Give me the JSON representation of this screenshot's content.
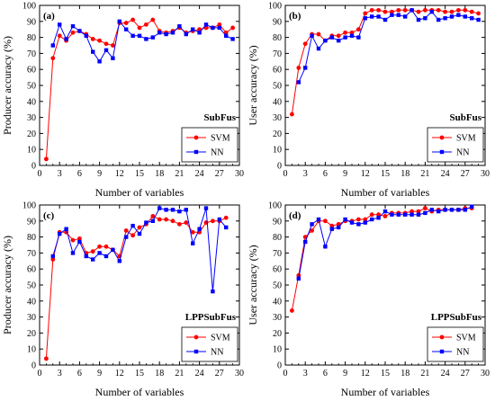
{
  "colors": {
    "svm": "#ff0000",
    "nn": "#0000ff",
    "frame": "#000000"
  },
  "chart_data": [
    {
      "type": "line",
      "panel_label": "(a)",
      "title": "SubFus",
      "xlabel": "Number of variables",
      "ylabel": "Producer accuracy (%)",
      "xlim": [
        0,
        30
      ],
      "ylim": [
        0,
        100
      ],
      "xticks": [
        0,
        3,
        6,
        9,
        12,
        15,
        18,
        21,
        24,
        27,
        30
      ],
      "yticks": [
        0,
        10,
        20,
        30,
        40,
        50,
        60,
        70,
        80,
        90,
        100
      ],
      "grid": false,
      "legend": "bottom-right",
      "x": [
        1,
        2,
        3,
        4,
        5,
        6,
        7,
        8,
        9,
        10,
        11,
        12,
        13,
        14,
        15,
        16,
        17,
        18,
        19,
        20,
        21,
        22,
        23,
        24,
        25,
        26,
        27,
        28,
        29
      ],
      "series": [
        {
          "name": "SVM",
          "values": [
            4,
            67,
            81,
            78,
            83,
            84,
            82,
            79,
            78,
            76,
            75,
            89,
            89,
            91,
            86,
            88,
            91,
            84,
            83,
            84,
            86,
            83,
            84,
            85,
            86,
            86,
            88,
            83,
            86
          ]
        },
        {
          "name": "NN",
          "values": [
            null,
            75,
            88,
            79,
            87,
            84,
            81,
            71,
            65,
            72,
            67,
            90,
            85,
            81,
            81,
            79,
            80,
            83,
            82,
            83,
            87,
            82,
            85,
            83,
            88,
            86,
            86,
            81,
            79
          ]
        }
      ]
    },
    {
      "type": "line",
      "panel_label": "(b)",
      "title": "SubFus",
      "xlabel": "Number of variables",
      "ylabel": "User accuracy (%)",
      "xlim": [
        0,
        30
      ],
      "ylim": [
        0,
        100
      ],
      "xticks": [
        0,
        3,
        6,
        9,
        12,
        15,
        18,
        21,
        24,
        27,
        30
      ],
      "yticks": [
        0,
        10,
        20,
        30,
        40,
        50,
        60,
        70,
        80,
        90,
        100
      ],
      "grid": false,
      "legend": "bottom-right",
      "x": [
        1,
        2,
        3,
        4,
        5,
        6,
        7,
        8,
        9,
        10,
        11,
        12,
        13,
        14,
        15,
        16,
        17,
        18,
        19,
        20,
        21,
        22,
        23,
        24,
        25,
        26,
        27,
        28,
        29
      ],
      "series": [
        {
          "name": "SVM",
          "values": [
            32,
            61,
            76,
            82,
            82,
            78,
            81,
            81,
            83,
            83,
            85,
            95,
            97,
            97,
            96,
            96,
            97,
            97,
            97,
            96,
            97,
            97,
            97,
            96,
            96,
            97,
            97,
            96,
            95
          ]
        },
        {
          "name": "NN",
          "values": [
            null,
            52,
            61,
            81,
            73,
            78,
            80,
            78,
            80,
            81,
            80,
            92,
            93,
            93,
            91,
            94,
            94,
            93,
            97,
            91,
            92,
            96,
            91,
            92,
            93,
            94,
            93,
            92,
            91
          ]
        }
      ]
    },
    {
      "type": "line",
      "panel_label": "(c)",
      "title": "LPPSubFus",
      "xlabel": "Number of variables",
      "ylabel": "Producer accuracy (%)",
      "xlim": [
        0,
        30
      ],
      "ylim": [
        0,
        100
      ],
      "xticks": [
        0,
        3,
        6,
        9,
        12,
        15,
        18,
        21,
        24,
        27,
        30
      ],
      "yticks": [
        0,
        10,
        20,
        30,
        40,
        50,
        60,
        70,
        80,
        90,
        100
      ],
      "grid": false,
      "legend": "bottom-right",
      "x": [
        1,
        2,
        3,
        4,
        5,
        6,
        7,
        8,
        9,
        10,
        11,
        12,
        13,
        14,
        15,
        16,
        17,
        18,
        19,
        20,
        21,
        22,
        23,
        24,
        25,
        26,
        27,
        28
      ],
      "series": [
        {
          "name": "SVM",
          "values": [
            4,
            66,
            83,
            83,
            78,
            79,
            70,
            71,
            74,
            74,
            72,
            68,
            84,
            81,
            86,
            88,
            93,
            91,
            91,
            90,
            88,
            89,
            83,
            83,
            89,
            90,
            90,
            92
          ]
        },
        {
          "name": "NN",
          "values": [
            null,
            68,
            82,
            85,
            70,
            77,
            68,
            66,
            70,
            68,
            72,
            65,
            80,
            87,
            82,
            89,
            90,
            98,
            97,
            97,
            96,
            97,
            76,
            85,
            98,
            46,
            91,
            86
          ]
        }
      ]
    },
    {
      "type": "line",
      "panel_label": "(d)",
      "title": "LPPSubFus",
      "xlabel": "Number of variables",
      "ylabel": "User accuracy (%)",
      "xlim": [
        0,
        30
      ],
      "ylim": [
        0,
        100
      ],
      "xticks": [
        0,
        3,
        6,
        9,
        12,
        15,
        18,
        21,
        24,
        27,
        30
      ],
      "yticks": [
        0,
        10,
        20,
        30,
        40,
        50,
        60,
        70,
        80,
        90,
        100
      ],
      "grid": false,
      "legend": "bottom-right",
      "x": [
        1,
        2,
        3,
        4,
        5,
        6,
        7,
        8,
        9,
        10,
        11,
        12,
        13,
        14,
        15,
        16,
        17,
        18,
        19,
        20,
        21,
        22,
        23,
        24,
        25,
        26,
        27,
        28
      ],
      "series": [
        {
          "name": "SVM",
          "values": [
            34,
            56,
            80,
            84,
            90,
            90,
            87,
            88,
            90,
            90,
            91,
            91,
            94,
            94,
            93,
            95,
            95,
            95,
            96,
            96,
            98,
            96,
            97,
            97,
            97,
            97,
            98,
            98
          ]
        },
        {
          "name": "NN",
          "values": [
            null,
            54,
            77,
            88,
            91,
            74,
            85,
            86,
            91,
            89,
            88,
            89,
            91,
            92,
            96,
            94,
            94,
            94,
            94,
            94,
            95,
            97,
            96,
            97,
            97,
            97,
            97,
            99
          ]
        }
      ]
    }
  ]
}
